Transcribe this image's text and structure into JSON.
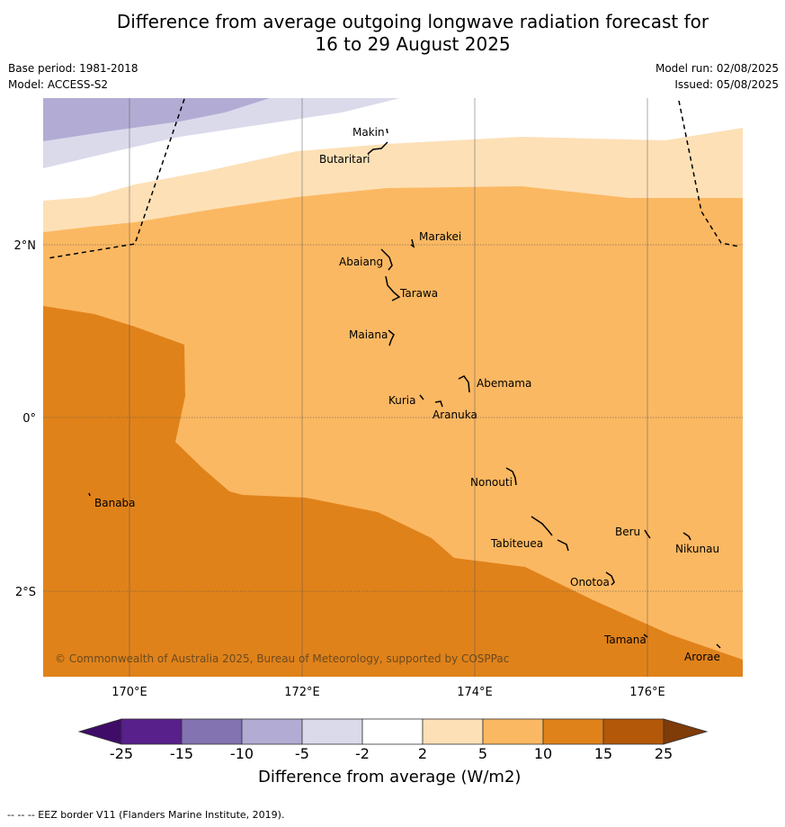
{
  "title_line1": "Difference from average outgoing longwave radiation forecast for",
  "title_line2": "16 to 29 August 2025",
  "base_period": "Base period: 1981-2018",
  "model": "Model: ACCESS-S2",
  "model_run": "Model run: 02/08/2025",
  "issued": "Issued: 05/08/2025",
  "copyright": "© Commonwealth of Australia 2025, Bureau of Meteorology, supported by COSPPac",
  "lat_labels": [
    "2°N",
    "0°",
    "2°S"
  ],
  "lon_labels": [
    "170°E",
    "172°E",
    "174°E",
    "176°E"
  ],
  "islands": [
    "Makin",
    "Butaritari",
    "Marakei",
    "Abaiang",
    "Tarawa",
    "Maiana",
    "Abemama",
    "Kuria",
    "Aranuka",
    "Banaba",
    "Nonouti",
    "Tabiteuea",
    "Beru",
    "Nikunau",
    "Onotoa",
    "Tamana",
    "Arorae"
  ],
  "colorbar": {
    "ticks": [
      "-25",
      "-15",
      "-10",
      "-5",
      "-2",
      "2",
      "5",
      "10",
      "15",
      "25"
    ],
    "colors": [
      "#3f0d68",
      "#57208a",
      "#8373b0",
      "#b2acd4",
      "#dadaeb",
      "#ffffff",
      "#fde0b6",
      "#fbb862",
      "#e0821a",
      "#b35808",
      "#7f3b08"
    ],
    "title": "Difference from average (W/m2)"
  },
  "footnote": "--  --  -- EEZ border V11 (Flanders Marine Institute, 2019)."
}
